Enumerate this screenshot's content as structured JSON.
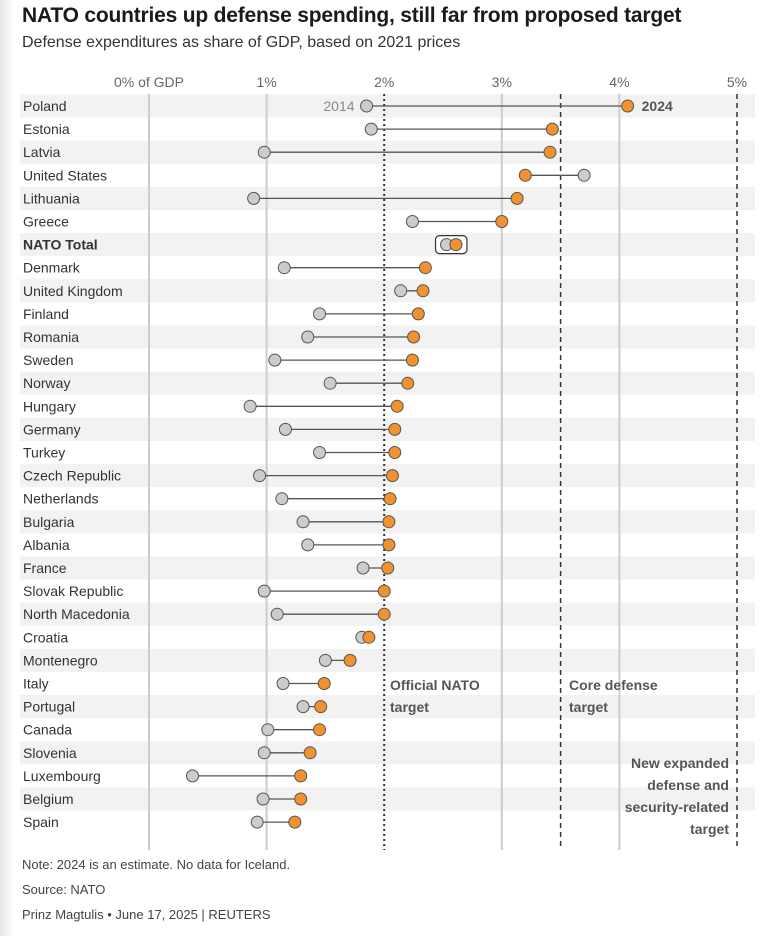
{
  "title": "NATO countries up defense spending, still far from proposed target",
  "subtitle": "Defense expenditures as share of GDP, based on 2021 prices",
  "footer": {
    "note": "Note: 2024 is an estimate. No data for Iceland.",
    "source": "Source: NATO",
    "byline": "Prinz Magtulis • June 17, 2025 | REUTERS"
  },
  "colors": {
    "y2014": "#cccccc",
    "y2024": "#f0922d",
    "connector": "#555555",
    "grid": "#cccccc",
    "band": "#f2f2f2"
  },
  "annotations": {
    "nato_target": [
      "Official NATO",
      "target"
    ],
    "core_target": [
      "Core defense",
      "target"
    ],
    "expanded_target": [
      "New expanded",
      "defense and",
      "security-related",
      "target"
    ]
  },
  "chart_data": {
    "type": "dumbbell",
    "title": "NATO countries up defense spending, still far from proposed target",
    "subtitle": "Defense expenditures as share of GDP, based on 2021 prices",
    "x_ticks": [
      "0% of GDP",
      "1%",
      "2%",
      "3%",
      "4%",
      "5%"
    ],
    "xlim": [
      0,
      5
    ],
    "reference_lines": [
      {
        "value": 2,
        "label": "Official NATO target",
        "style": "dotted"
      },
      {
        "value": 3.5,
        "label": "Core defense target",
        "style": "dashed"
      },
      {
        "value": 5,
        "label": "New expanded defense and security-related target",
        "style": "dashed"
      }
    ],
    "series_labels": {
      "start": "2014",
      "end": "2024"
    },
    "rows": [
      {
        "country": "Poland",
        "y2014": 1.85,
        "y2024": 4.07
      },
      {
        "country": "Estonia",
        "y2014": 1.89,
        "y2024": 3.43
      },
      {
        "country": "Latvia",
        "y2014": 0.98,
        "y2024": 3.41
      },
      {
        "country": "United States",
        "y2014": 3.7,
        "y2024": 3.2
      },
      {
        "country": "Lithuania",
        "y2014": 0.89,
        "y2024": 3.13
      },
      {
        "country": "Greece",
        "y2014": 2.24,
        "y2024": 3.0
      },
      {
        "country": "NATO Total",
        "y2014": 2.53,
        "y2024": 2.61,
        "bold": true
      },
      {
        "country": "Denmark",
        "y2014": 1.15,
        "y2024": 2.35
      },
      {
        "country": "United Kingdom",
        "y2014": 2.14,
        "y2024": 2.33
      },
      {
        "country": "Finland",
        "y2014": 1.45,
        "y2024": 2.29
      },
      {
        "country": "Romania",
        "y2014": 1.35,
        "y2024": 2.25
      },
      {
        "country": "Sweden",
        "y2014": 1.07,
        "y2024": 2.24
      },
      {
        "country": "Norway",
        "y2014": 1.54,
        "y2024": 2.2
      },
      {
        "country": "Hungary",
        "y2014": 0.86,
        "y2024": 2.11
      },
      {
        "country": "Germany",
        "y2014": 1.16,
        "y2024": 2.09
      },
      {
        "country": "Turkey",
        "y2014": 1.45,
        "y2024": 2.09
      },
      {
        "country": "Czech Republic",
        "y2014": 0.94,
        "y2024": 2.07
      },
      {
        "country": "Netherlands",
        "y2014": 1.13,
        "y2024": 2.05
      },
      {
        "country": "Bulgaria",
        "y2014": 1.31,
        "y2024": 2.04
      },
      {
        "country": "Albania",
        "y2014": 1.35,
        "y2024": 2.04
      },
      {
        "country": "France",
        "y2014": 1.82,
        "y2024": 2.03
      },
      {
        "country": "Slovak Republic",
        "y2014": 0.98,
        "y2024": 2.0
      },
      {
        "country": "North Macedonia",
        "y2014": 1.09,
        "y2024": 2.0
      },
      {
        "country": "Croatia",
        "y2014": 1.81,
        "y2024": 1.87
      },
      {
        "country": "Montenegro",
        "y2014": 1.5,
        "y2024": 1.71
      },
      {
        "country": "Italy",
        "y2014": 1.14,
        "y2024": 1.49
      },
      {
        "country": "Portugal",
        "y2014": 1.31,
        "y2024": 1.46
      },
      {
        "country": "Canada",
        "y2014": 1.01,
        "y2024": 1.45
      },
      {
        "country": "Slovenia",
        "y2014": 0.98,
        "y2024": 1.37
      },
      {
        "country": "Luxembourg",
        "y2014": 0.37,
        "y2024": 1.29
      },
      {
        "country": "Belgium",
        "y2014": 0.97,
        "y2024": 1.29
      },
      {
        "country": "Spain",
        "y2014": 0.92,
        "y2024": 1.24
      }
    ]
  }
}
